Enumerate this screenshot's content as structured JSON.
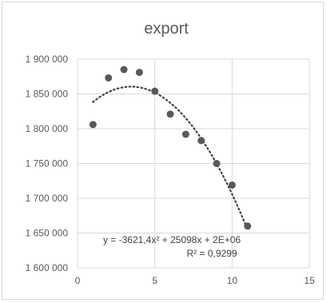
{
  "chart_data": {
    "type": "scatter",
    "title": "export",
    "xlabel": "",
    "ylabel": "",
    "xlim": [
      0,
      15
    ],
    "ylim": [
      1600000,
      1900000
    ],
    "x_ticks": [
      0,
      5,
      10,
      15
    ],
    "y_ticks": [
      1600000,
      1650000,
      1700000,
      1750000,
      1800000,
      1850000,
      1900000
    ],
    "x_tick_labels": [
      "0",
      "5",
      "10",
      "15"
    ],
    "y_tick_labels": [
      "1 600 000",
      "1 650 000",
      "1 700 000",
      "1 750 000",
      "1 800 000",
      "1 850 000",
      "1 900 000"
    ],
    "grid": true,
    "series": [
      {
        "x": [
          1,
          2,
          3,
          4,
          5,
          6,
          7,
          8,
          9,
          10,
          11
        ],
        "y": [
          1806000,
          1873000,
          1885000,
          1881000,
          1854000,
          1821000,
          1792000,
          1783000,
          1750000,
          1719000,
          1660000
        ],
        "color": "#595959"
      }
    ],
    "trendline": {
      "type": "polynomial",
      "order": 2,
      "style": "dotted",
      "color": "#404040",
      "coefficients": [
        -3621.4,
        25098,
        1817000
      ],
      "equation": "y = -3621,4x² + 25098x + 2E+06",
      "r_squared_label": "R² = 0,9299"
    }
  }
}
